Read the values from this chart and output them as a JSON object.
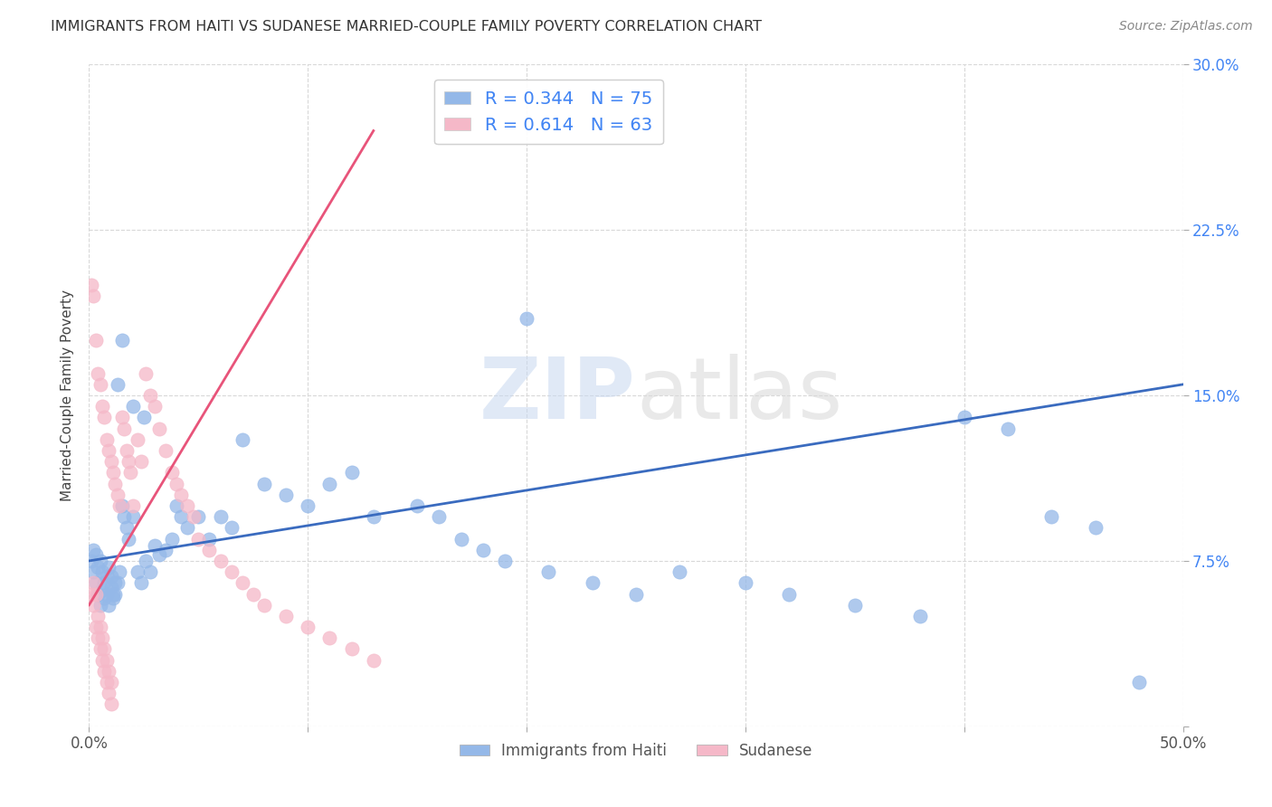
{
  "title": "IMMIGRANTS FROM HAITI VS SUDANESE MARRIED-COUPLE FAMILY POVERTY CORRELATION CHART",
  "source": "Source: ZipAtlas.com",
  "ylabel": "Married-Couple Family Poverty",
  "xlim": [
    0.0,
    0.5
  ],
  "ylim": [
    0.0,
    0.3
  ],
  "xticks": [
    0.0,
    0.1,
    0.2,
    0.3,
    0.4,
    0.5
  ],
  "xtick_labels": [
    "0.0%",
    "",
    "",
    "",
    "",
    "50.0%"
  ],
  "yticks": [
    0.0,
    0.075,
    0.15,
    0.225,
    0.3
  ],
  "ytick_labels_right": [
    "",
    "7.5%",
    "15.0%",
    "22.5%",
    "30.0%"
  ],
  "haiti_color": "#94b8e8",
  "haiti_line_color": "#3a6bbf",
  "sudanese_color": "#f5b8c8",
  "sudanese_line_color": "#e8547a",
  "haiti_R": 0.344,
  "haiti_N": 75,
  "sudanese_R": 0.614,
  "sudanese_N": 63,
  "legend_label_1": "Immigrants from Haiti",
  "legend_label_2": "Sudanese",
  "watermark_zip": "ZIP",
  "watermark_atlas": "atlas",
  "background_color": "#ffffff",
  "grid_color": "#d8d8d8",
  "haiti_x": [
    0.001,
    0.002,
    0.002,
    0.003,
    0.003,
    0.004,
    0.004,
    0.005,
    0.005,
    0.006,
    0.006,
    0.007,
    0.007,
    0.008,
    0.008,
    0.009,
    0.009,
    0.01,
    0.01,
    0.011,
    0.011,
    0.012,
    0.012,
    0.013,
    0.014,
    0.015,
    0.016,
    0.017,
    0.018,
    0.02,
    0.022,
    0.024,
    0.026,
    0.028,
    0.03,
    0.032,
    0.035,
    0.038,
    0.04,
    0.042,
    0.045,
    0.05,
    0.055,
    0.06,
    0.065,
    0.07,
    0.08,
    0.09,
    0.1,
    0.11,
    0.12,
    0.13,
    0.15,
    0.16,
    0.17,
    0.18,
    0.19,
    0.21,
    0.23,
    0.25,
    0.27,
    0.3,
    0.32,
    0.35,
    0.38,
    0.4,
    0.42,
    0.44,
    0.46,
    0.48,
    0.013,
    0.015,
    0.02,
    0.025,
    0.2
  ],
  "haiti_y": [
    0.075,
    0.08,
    0.07,
    0.078,
    0.065,
    0.072,
    0.06,
    0.075,
    0.055,
    0.07,
    0.062,
    0.065,
    0.058,
    0.068,
    0.06,
    0.072,
    0.055,
    0.068,
    0.063,
    0.06,
    0.058,
    0.065,
    0.06,
    0.065,
    0.07,
    0.1,
    0.095,
    0.09,
    0.085,
    0.095,
    0.07,
    0.065,
    0.075,
    0.07,
    0.082,
    0.078,
    0.08,
    0.085,
    0.1,
    0.095,
    0.09,
    0.095,
    0.085,
    0.095,
    0.09,
    0.13,
    0.11,
    0.105,
    0.1,
    0.11,
    0.115,
    0.095,
    0.1,
    0.095,
    0.085,
    0.08,
    0.075,
    0.07,
    0.065,
    0.06,
    0.07,
    0.065,
    0.06,
    0.055,
    0.05,
    0.14,
    0.135,
    0.095,
    0.09,
    0.02,
    0.155,
    0.175,
    0.145,
    0.14,
    0.185
  ],
  "sudanese_x": [
    0.001,
    0.001,
    0.002,
    0.002,
    0.003,
    0.003,
    0.004,
    0.004,
    0.005,
    0.005,
    0.006,
    0.006,
    0.007,
    0.007,
    0.008,
    0.008,
    0.009,
    0.009,
    0.01,
    0.01,
    0.011,
    0.012,
    0.013,
    0.014,
    0.015,
    0.016,
    0.017,
    0.018,
    0.019,
    0.02,
    0.022,
    0.024,
    0.026,
    0.028,
    0.03,
    0.032,
    0.035,
    0.038,
    0.04,
    0.042,
    0.045,
    0.048,
    0.05,
    0.055,
    0.06,
    0.065,
    0.07,
    0.075,
    0.08,
    0.09,
    0.1,
    0.11,
    0.12,
    0.13,
    0.002,
    0.003,
    0.004,
    0.005,
    0.006,
    0.007,
    0.008,
    0.009,
    0.01
  ],
  "sudanese_y": [
    0.2,
    0.06,
    0.195,
    0.055,
    0.175,
    0.045,
    0.16,
    0.04,
    0.155,
    0.035,
    0.145,
    0.03,
    0.14,
    0.025,
    0.13,
    0.02,
    0.125,
    0.015,
    0.12,
    0.01,
    0.115,
    0.11,
    0.105,
    0.1,
    0.14,
    0.135,
    0.125,
    0.12,
    0.115,
    0.1,
    0.13,
    0.12,
    0.16,
    0.15,
    0.145,
    0.135,
    0.125,
    0.115,
    0.11,
    0.105,
    0.1,
    0.095,
    0.085,
    0.08,
    0.075,
    0.07,
    0.065,
    0.06,
    0.055,
    0.05,
    0.045,
    0.04,
    0.035,
    0.03,
    0.065,
    0.06,
    0.05,
    0.045,
    0.04,
    0.035,
    0.03,
    0.025,
    0.02
  ],
  "haiti_line_x": [
    0.0,
    0.5
  ],
  "haiti_line_y": [
    0.075,
    0.155
  ],
  "sudanese_line_x": [
    0.0,
    0.13
  ],
  "sudanese_line_y": [
    0.055,
    0.27
  ]
}
